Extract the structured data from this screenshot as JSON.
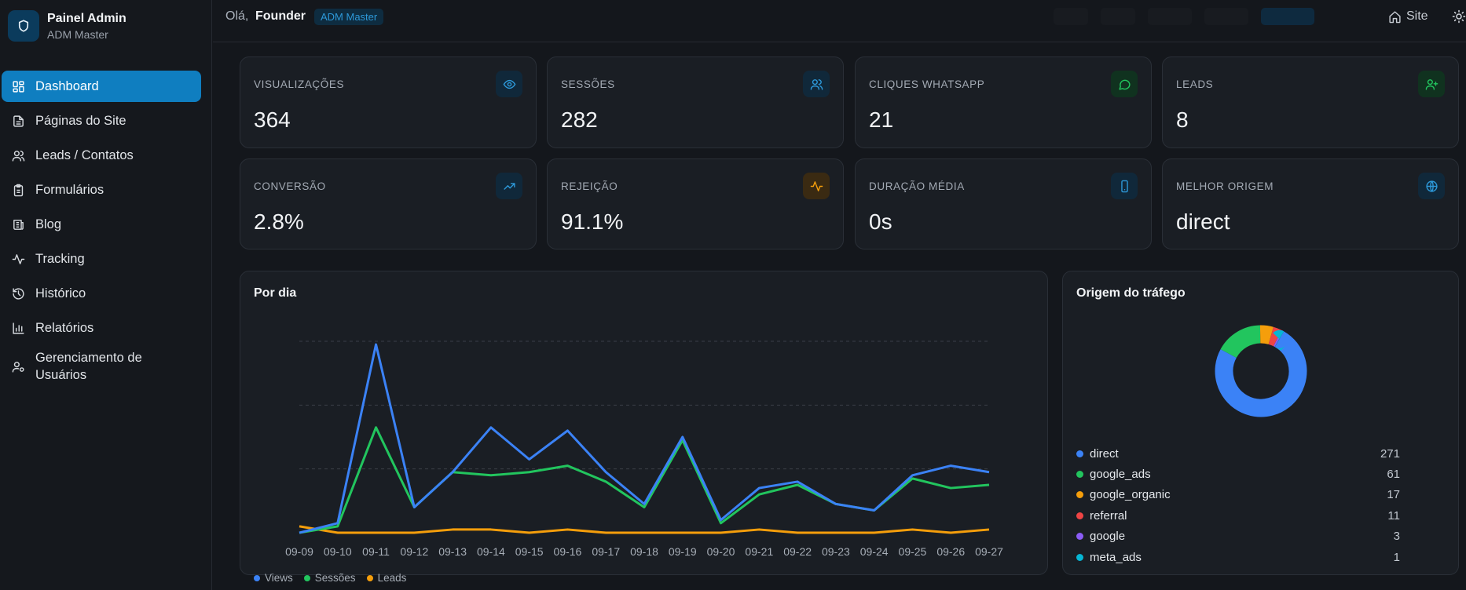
{
  "brand": {
    "title": "Painel Admin",
    "subtitle": "ADM Master"
  },
  "sidebar": {
    "items": [
      {
        "label": "Dashboard",
        "icon": "dashboard-icon",
        "active": true
      },
      {
        "label": "Páginas do Site",
        "icon": "file-icon"
      },
      {
        "label": "Leads / Contatos",
        "icon": "users-icon"
      },
      {
        "label": "Formulários",
        "icon": "clipboard-icon"
      },
      {
        "label": "Blog",
        "icon": "newspaper-icon"
      },
      {
        "label": "Tracking",
        "icon": "activity-icon"
      },
      {
        "label": "Histórico",
        "icon": "history-icon"
      },
      {
        "label": "Relatórios",
        "icon": "bar-chart-icon"
      },
      {
        "label": "Gerenciamento de Usuários",
        "icon": "user-cog-icon"
      }
    ]
  },
  "header": {
    "greeting": "Olá,",
    "user_name": "Founder",
    "role": "ADM Master",
    "site_label": "Site"
  },
  "stats": [
    {
      "label": "VISUALIZAÇÕES",
      "value": "364",
      "icon": "eye-icon",
      "color": "#2d98d8"
    },
    {
      "label": "SESSÕES",
      "value": "282",
      "icon": "users-icon",
      "color": "#2d98d8"
    },
    {
      "label": "CLIQUES WHATSAPP",
      "value": "21",
      "icon": "message-icon",
      "color": "#22c55e"
    },
    {
      "label": "LEADS",
      "value": "8",
      "icon": "user-plus-icon",
      "color": "#22c55e"
    },
    {
      "label": "CONVERSÃO",
      "value": "2.8%",
      "icon": "trending-up-icon",
      "color": "#2d98d8"
    },
    {
      "label": "REJEIÇÃO",
      "value": "91.1%",
      "icon": "activity-icon",
      "color": "#f59e0b"
    },
    {
      "label": "DURAÇÃO MÉDIA",
      "value": "0s",
      "icon": "smartphone-icon",
      "color": "#2d98d8"
    },
    {
      "label": "MELHOR ORIGEM",
      "value": "direct",
      "icon": "globe-icon",
      "color": "#2d98d8"
    }
  ],
  "daily_panel": {
    "title": "Por dia"
  },
  "origin_panel": {
    "title": "Origem do tráfego"
  },
  "chart_data": [
    {
      "type": "line",
      "title": "Por dia",
      "categories": [
        "09-09",
        "09-10",
        "09-11",
        "09-12",
        "09-13",
        "09-14",
        "09-15",
        "09-16",
        "09-17",
        "09-18",
        "09-19",
        "09-20",
        "09-21",
        "09-22",
        "09-23",
        "09-24",
        "09-25",
        "09-26",
        "09-27"
      ],
      "ylim": [
        0,
        60
      ],
      "grid": true,
      "legend": "bottom-left",
      "series": [
        {
          "name": "Views",
          "color": "#3b82f6",
          "values": [
            0,
            3,
            59,
            8,
            19,
            33,
            23,
            32,
            19,
            9,
            30,
            4,
            14,
            16,
            9,
            7,
            18,
            21,
            19
          ]
        },
        {
          "name": "Sessões",
          "color": "#22c55e",
          "values": [
            0,
            2,
            33,
            8,
            19,
            18,
            19,
            21,
            16,
            8,
            29,
            3,
            12,
            15,
            9,
            7,
            17,
            14,
            15
          ]
        },
        {
          "name": "Leads",
          "color": "#f59e0b",
          "values": [
            2,
            0,
            0,
            0,
            1,
            1,
            0,
            1,
            0,
            0,
            0,
            0,
            1,
            0,
            0,
            0,
            1,
            0,
            1
          ]
        }
      ]
    },
    {
      "type": "pie",
      "title": "Origem do tráfego",
      "donut": true,
      "categories": [
        "direct",
        "google_ads",
        "google_organic",
        "referral",
        "google",
        "meta_ads"
      ],
      "values": [
        271,
        61,
        17,
        11,
        3,
        1
      ],
      "colors": [
        "#3b82f6",
        "#22c55e",
        "#f59e0b",
        "#ef4444",
        "#8b5cf6",
        "#06b6d4"
      ]
    }
  ]
}
